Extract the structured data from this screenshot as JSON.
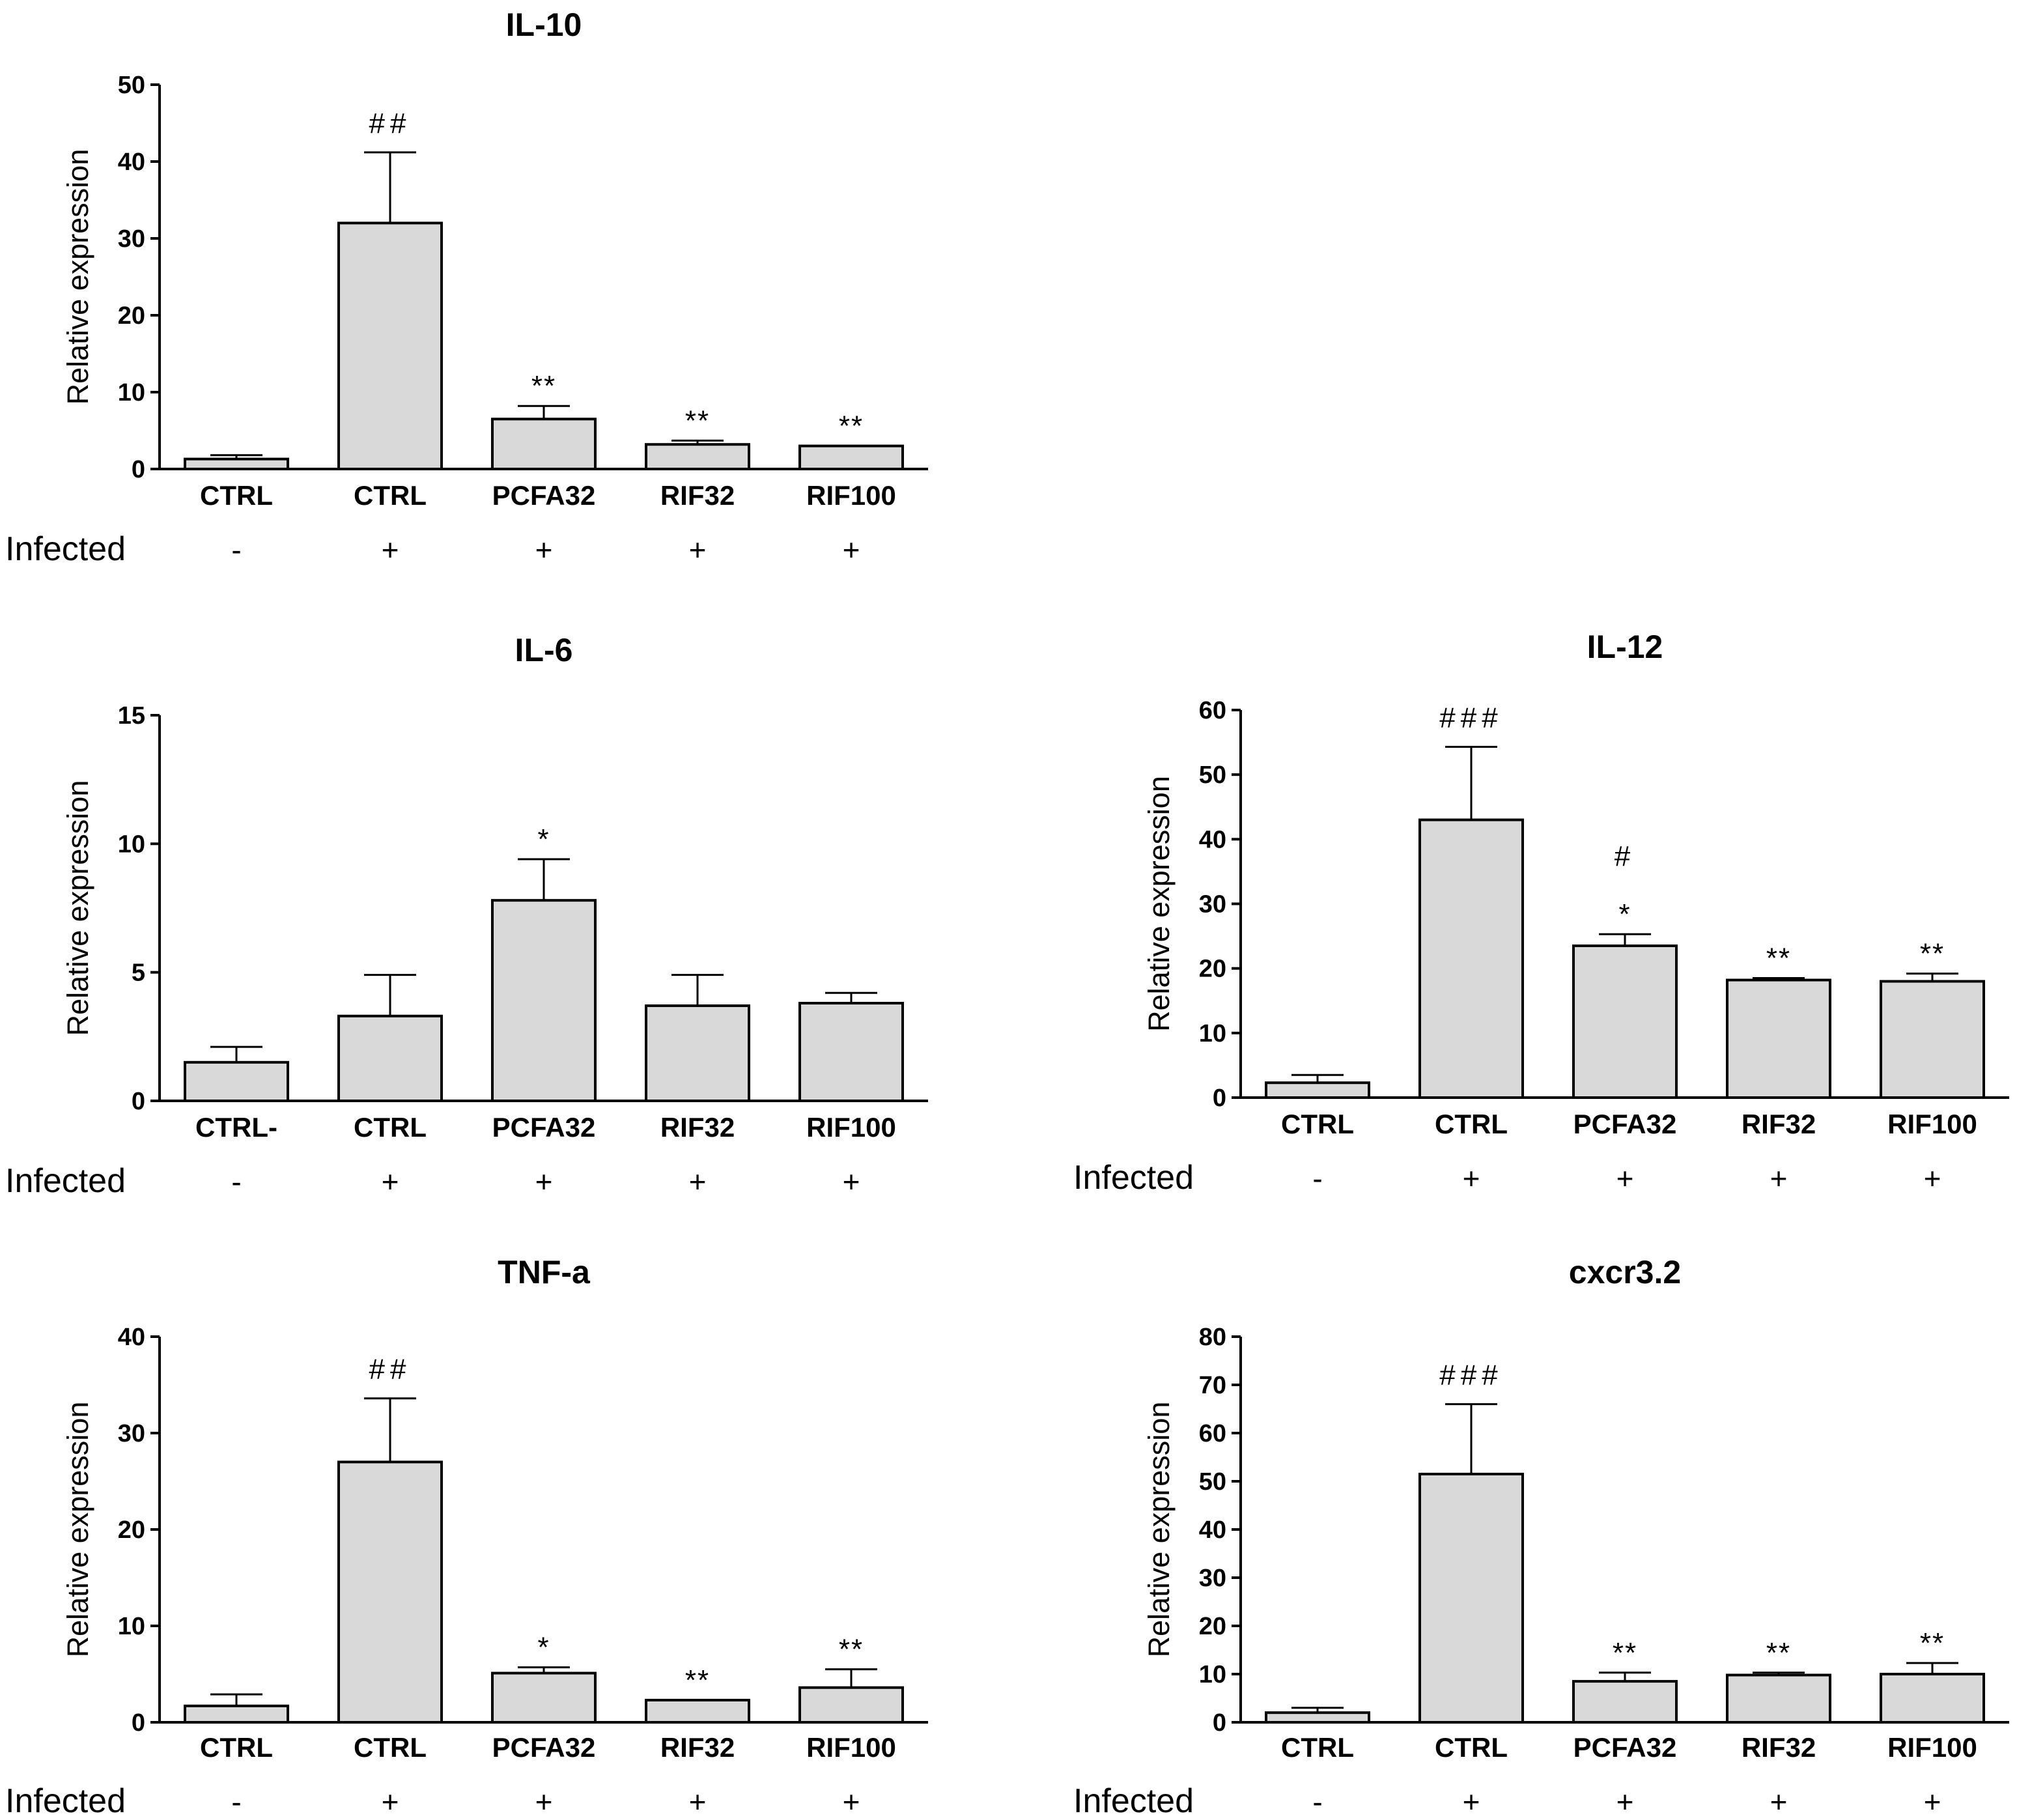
{
  "figure": {
    "infected_label": "Infected"
  },
  "chart_data": [
    {
      "id": "il10",
      "type": "bar",
      "title": "IL-10",
      "xlabel": "",
      "ylabel": "Relative expression",
      "ylim": [
        0,
        50
      ],
      "yticks": [
        0,
        10,
        20,
        30,
        40,
        50
      ],
      "categories": [
        "CTRL",
        "CTRL",
        "PCFA32",
        "RIF32",
        "RIF100"
      ],
      "infected": [
        "-",
        "+",
        "+",
        "+",
        "+"
      ],
      "values": [
        1.3,
        32,
        6.5,
        3.2,
        3
      ],
      "errors": [
        0.5,
        9.2,
        1.7,
        0.5,
        0
      ],
      "annotations": [
        "",
        "##",
        "**",
        "**",
        "**"
      ]
    },
    {
      "id": "il6",
      "type": "bar",
      "title": "IL-6",
      "xlabel": "",
      "ylabel": "Relative expression",
      "ylim": [
        0,
        15
      ],
      "yticks": [
        0,
        5,
        10,
        15
      ],
      "categories": [
        "CTRL-",
        "CTRL",
        "PCFA32",
        "RIF32",
        "RIF100"
      ],
      "infected": [
        "-",
        "+",
        "+",
        "+",
        "+"
      ],
      "values": [
        1.5,
        3.3,
        7.8,
        3.7,
        3.8
      ],
      "errors": [
        0.6,
        1.6,
        1.6,
        1.2,
        0.4
      ],
      "annotations": [
        "",
        "",
        "*",
        "",
        ""
      ]
    },
    {
      "id": "il12",
      "type": "bar",
      "title": "IL-12",
      "xlabel": "",
      "ylabel": "Relative expression",
      "ylim": [
        0,
        60
      ],
      "yticks": [
        0,
        10,
        20,
        30,
        40,
        50,
        60
      ],
      "categories": [
        "CTRL",
        "CTRL",
        "PCFA32",
        "RIF32",
        "RIF100"
      ],
      "infected": [
        "-",
        "+",
        "+",
        "+",
        "+"
      ],
      "values": [
        2.3,
        43,
        23.5,
        18.2,
        18
      ],
      "errors": [
        1.2,
        11.3,
        1.8,
        0.3,
        1.2
      ],
      "annotations": [
        "",
        "###",
        "#\n*",
        "**",
        "**"
      ]
    },
    {
      "id": "tnfa",
      "type": "bar",
      "title": "TNF-a",
      "xlabel": "",
      "ylabel": "Relative expression",
      "ylim": [
        0,
        40
      ],
      "yticks": [
        0,
        10,
        20,
        30,
        40
      ],
      "categories": [
        "CTRL",
        "CTRL",
        "PCFA32",
        "RIF32",
        "RIF100"
      ],
      "infected": [
        "-",
        "+",
        "+",
        "+",
        "+"
      ],
      "values": [
        1.7,
        27,
        5.1,
        2.3,
        3.6
      ],
      "errors": [
        1.2,
        6.6,
        0.6,
        0,
        1.9
      ],
      "annotations": [
        "",
        "##",
        "*",
        "**",
        "**"
      ]
    },
    {
      "id": "cxcr32",
      "type": "bar",
      "title": "cxcr3.2",
      "xlabel": "",
      "ylabel": "Relative expression",
      "ylim": [
        0,
        80
      ],
      "yticks": [
        0,
        10,
        20,
        30,
        40,
        50,
        60,
        70,
        80
      ],
      "categories": [
        "CTRL",
        "CTRL",
        "PCFA32",
        "RIF32",
        "RIF100"
      ],
      "infected": [
        "-",
        "+",
        "+",
        "+",
        "+"
      ],
      "values": [
        2,
        51.5,
        8.5,
        9.8,
        10
      ],
      "errors": [
        1,
        14.5,
        1.8,
        0.5,
        2.3
      ],
      "annotations": [
        "",
        "###",
        "**",
        "**",
        "**"
      ]
    }
  ]
}
